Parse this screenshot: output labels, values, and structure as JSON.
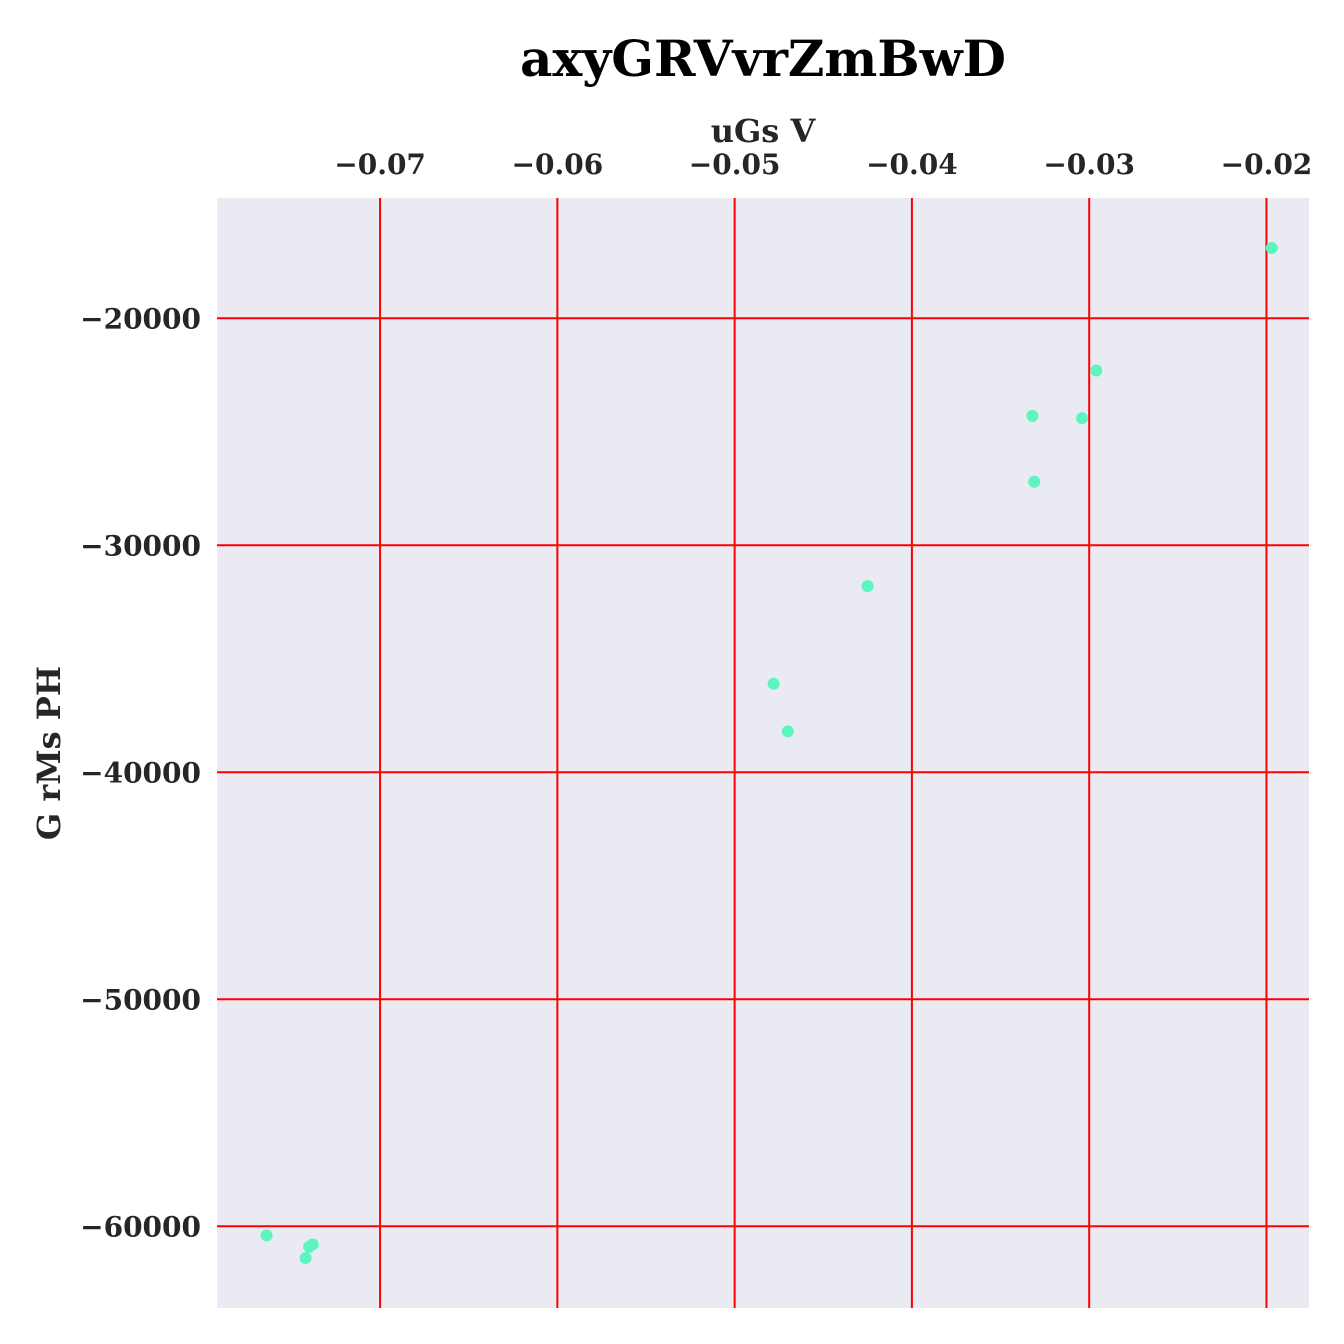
{
  "chart_data": {
    "type": "scatter",
    "title": "axyGRVvrZmBwD",
    "xlabel": "uGs V",
    "ylabel": "G rMs PH",
    "x_axis_position": "top",
    "xlim": [
      -0.0792,
      -0.0176
    ],
    "ylim": [
      -63600,
      -14700
    ],
    "xticks": [
      -0.07,
      -0.06,
      -0.05,
      -0.04,
      -0.03,
      -0.02
    ],
    "xtick_labels": [
      "−0.07",
      "−0.06",
      "−0.05",
      "−0.04",
      "−0.03",
      "−0.02"
    ],
    "yticks": [
      -20000,
      -30000,
      -40000,
      -50000,
      -60000
    ],
    "ytick_labels": [
      "−20000",
      "−30000",
      "−40000",
      "−50000",
      "−60000"
    ],
    "grid": true,
    "colors": {
      "points": "#5cf5c0",
      "grid": "#ff0000",
      "background": "#eaeaf2"
    },
    "points": [
      {
        "x": -0.0764,
        "y": -60400
      },
      {
        "x": -0.0742,
        "y": -61400
      },
      {
        "x": -0.074,
        "y": -60900
      },
      {
        "x": -0.0738,
        "y": -60800
      },
      {
        "x": -0.0478,
        "y": -36100
      },
      {
        "x": -0.047,
        "y": -38200
      },
      {
        "x": -0.0425,
        "y": -31800
      },
      {
        "x": -0.0332,
        "y": -24300
      },
      {
        "x": -0.0331,
        "y": -27200
      },
      {
        "x": -0.0304,
        "y": -24400
      },
      {
        "x": -0.0296,
        "y": -22300
      },
      {
        "x": -0.0197,
        "y": -16900
      }
    ]
  }
}
